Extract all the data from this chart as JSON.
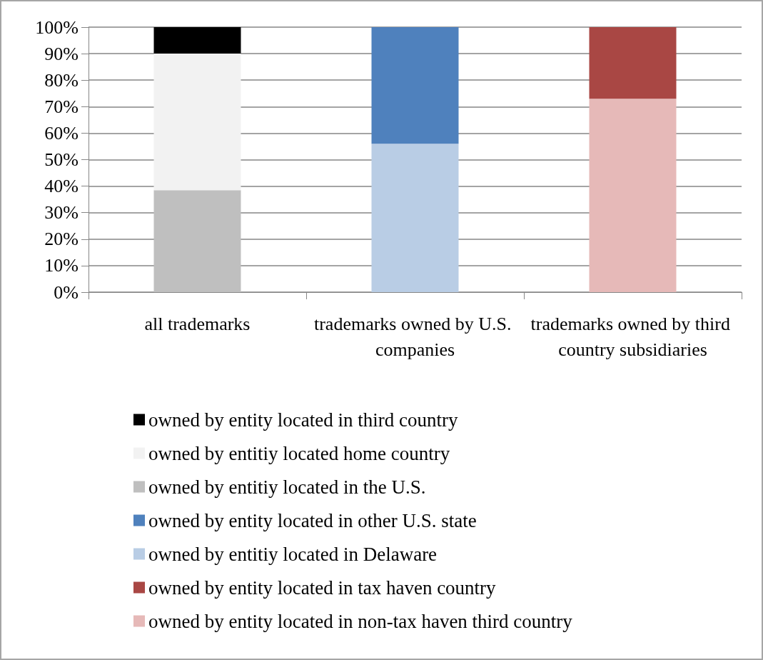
{
  "chart_data": {
    "type": "bar",
    "stacked": true,
    "categories": [
      "all trademarks",
      "trademarks owned by U.S. companies",
      "trademarks owned by third country subsidiaries"
    ],
    "series": [
      {
        "name": "owned by entity located in non-tax haven third country",
        "color": "#e6b9b8",
        "values": [
          null,
          null,
          73
        ]
      },
      {
        "name": "owned by entity located in tax haven country",
        "color": "#a94744",
        "values": [
          null,
          null,
          27
        ]
      },
      {
        "name": "owned by entitiy located in Delaware",
        "color": "#b9cde5",
        "values": [
          null,
          56,
          null
        ]
      },
      {
        "name": "owned by entity located in other U.S. state",
        "color": "#4f81bd",
        "values": [
          null,
          44,
          null
        ]
      },
      {
        "name": "owned by entitiy located in the U.S.",
        "color": "#bfbfbf",
        "values": [
          38.5,
          null,
          null
        ]
      },
      {
        "name": "owned by entitiy located home country",
        "color": "#f2f2f2",
        "values": [
          51.5,
          null,
          null
        ]
      },
      {
        "name": "owned by entity located in third country",
        "color": "#000000",
        "values": [
          10,
          null,
          null
        ]
      }
    ],
    "ylim": [
      0,
      100
    ],
    "yticks": [
      {
        "value": 0,
        "label": "0%"
      },
      {
        "value": 10,
        "label": "10%"
      },
      {
        "value": 20,
        "label": "20%"
      },
      {
        "value": 30,
        "label": "30%"
      },
      {
        "value": 40,
        "label": "40%"
      },
      {
        "value": 50,
        "label": "50%"
      },
      {
        "value": 60,
        "label": "60%"
      },
      {
        "value": 70,
        "label": "70%"
      },
      {
        "value": 80,
        "label": "80%"
      },
      {
        "value": 90,
        "label": "90%"
      },
      {
        "value": 100,
        "label": "100%"
      }
    ],
    "grid": "y",
    "legend": "bottom"
  }
}
